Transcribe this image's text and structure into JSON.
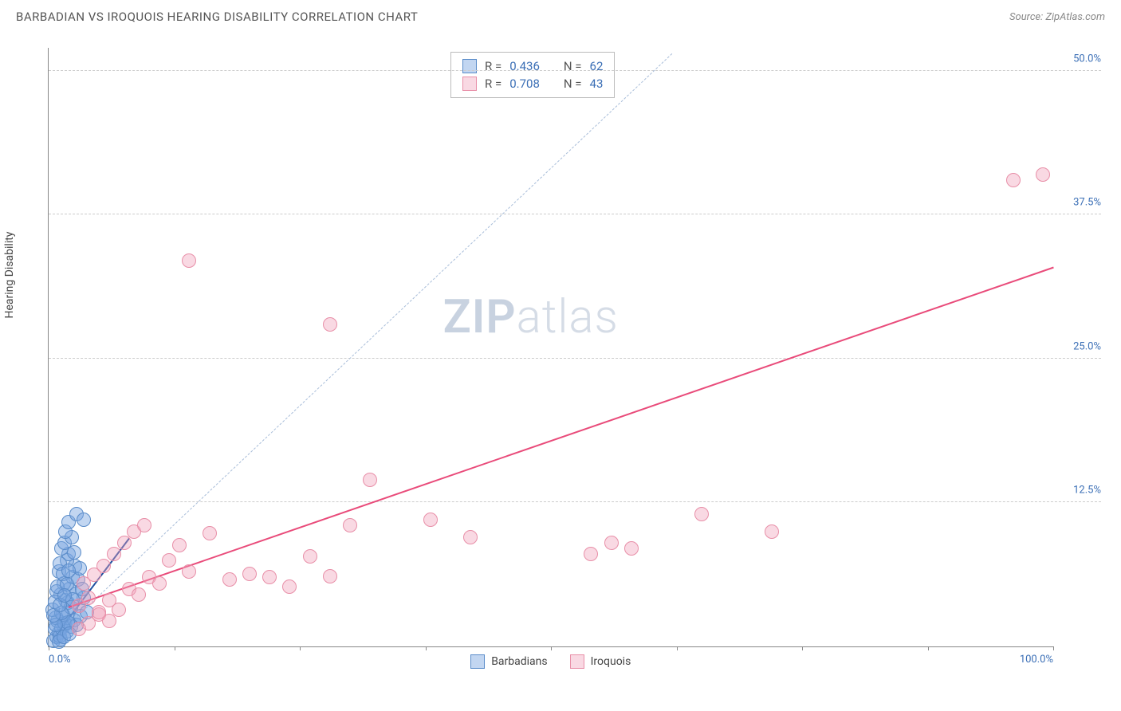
{
  "title": "BARBADIAN VS IROQUOIS HEARING DISABILITY CORRELATION CHART",
  "source_prefix": "Source: ",
  "source": "ZipAtlas.com",
  "ylabel": "Hearing Disability",
  "watermark_bold": "ZIP",
  "watermark_light": "atlas",
  "chart": {
    "type": "scatter",
    "xlim": [
      0,
      100
    ],
    "ylim": [
      0,
      52
    ],
    "ytick_values": [
      12.5,
      25.0,
      37.5,
      50.0
    ],
    "ytick_labels": [
      "12.5%",
      "25.0%",
      "37.5%",
      "50.0%"
    ],
    "xtick_values": [
      0,
      50,
      100
    ],
    "xtick_labels": [
      "0.0%",
      "",
      "100.0%"
    ],
    "xtick_minor": [
      12.5,
      25,
      37.5,
      62.5,
      75,
      87.5
    ],
    "background_color": "#ffffff",
    "grid_color": "#cccccc",
    "axis_color": "#888888",
    "tick_label_color": "#3b6fb6",
    "reference_line": {
      "x1": 2,
      "y1": 2,
      "x2": 62,
      "y2": 51.5,
      "color": "#a8bdd9",
      "dash": true
    }
  },
  "series": [
    {
      "name": "Barbadians",
      "marker_color_fill": "rgba(120,165,225,0.45)",
      "marker_color_stroke": "#5a8cc9",
      "marker_radius": 9,
      "trend_color": "#1e4fa0",
      "trend": {
        "x1": 1.5,
        "y1": 2.0,
        "x2": 8,
        "y2": 9.5
      },
      "R": "0.436",
      "N": "62",
      "points": [
        [
          0.5,
          0.5
        ],
        [
          0.8,
          0.8
        ],
        [
          1.0,
          1.2
        ],
        [
          1.2,
          0.6
        ],
        [
          1.5,
          1.8
        ],
        [
          0.6,
          1.5
        ],
        [
          0.9,
          2.2
        ],
        [
          1.1,
          0.9
        ],
        [
          1.3,
          1.6
        ],
        [
          0.7,
          2.5
        ],
        [
          1.6,
          2.0
        ],
        [
          1.8,
          1.3
        ],
        [
          2.0,
          3.0
        ],
        [
          1.4,
          2.8
        ],
        [
          2.2,
          1.7
        ],
        [
          0.4,
          3.2
        ],
        [
          1.9,
          3.8
        ],
        [
          2.5,
          2.3
        ],
        [
          1.7,
          4.0
        ],
        [
          2.8,
          1.9
        ],
        [
          1.2,
          4.5
        ],
        [
          2.1,
          5.0
        ],
        [
          3.0,
          3.5
        ],
        [
          1.5,
          5.5
        ],
        [
          2.4,
          6.0
        ],
        [
          0.8,
          4.8
        ],
        [
          3.2,
          2.6
        ],
        [
          1.0,
          6.5
        ],
        [
          2.6,
          7.0
        ],
        [
          1.8,
          7.5
        ],
        [
          3.5,
          4.2
        ],
        [
          2.0,
          8.0
        ],
        [
          1.3,
          8.5
        ],
        [
          2.9,
          5.8
        ],
        [
          1.6,
          9.0
        ],
        [
          3.8,
          3.0
        ],
        [
          2.3,
          9.5
        ],
        [
          1.1,
          7.2
        ],
        [
          3.1,
          6.8
        ],
        [
          2.7,
          4.6
        ],
        [
          0.9,
          5.2
        ],
        [
          1.4,
          6.3
        ],
        [
          2.5,
          8.2
        ],
        [
          3.3,
          5.0
        ],
        [
          1.7,
          10.0
        ],
        [
          2.0,
          10.8
        ],
        [
          2.8,
          11.5
        ],
        [
          3.5,
          11.0
        ],
        [
          2.2,
          3.4
        ],
        [
          1.9,
          2.1
        ],
        [
          0.6,
          3.9
        ],
        [
          1.0,
          0.4
        ],
        [
          1.5,
          0.8
        ],
        [
          2.1,
          1.1
        ],
        [
          0.7,
          1.9
        ],
        [
          1.3,
          2.9
        ],
        [
          1.8,
          5.4
        ],
        [
          2.4,
          4.1
        ],
        [
          0.5,
          2.7
        ],
        [
          1.1,
          3.6
        ],
        [
          1.6,
          4.4
        ],
        [
          2.0,
          6.6
        ]
      ]
    },
    {
      "name": "Iroquois",
      "marker_color_fill": "rgba(240,160,185,0.40)",
      "marker_color_stroke": "#e88fa8",
      "marker_radius": 9,
      "trend_color": "#e94b7a",
      "trend": {
        "x1": 2,
        "y1": 3.5,
        "x2": 100,
        "y2": 33
      },
      "R": "0.708",
      "N": "43",
      "points": [
        [
          3,
          3.5
        ],
        [
          4,
          4.2
        ],
        [
          5,
          2.8
        ],
        [
          3.5,
          5.5
        ],
        [
          6,
          4.0
        ],
        [
          4.5,
          6.2
        ],
        [
          7,
          3.2
        ],
        [
          5.5,
          7.0
        ],
        [
          8,
          5.0
        ],
        [
          6.5,
          8.0
        ],
        [
          9,
          4.5
        ],
        [
          7.5,
          9.0
        ],
        [
          10,
          6.0
        ],
        [
          8.5,
          10.0
        ],
        [
          11,
          5.5
        ],
        [
          9.5,
          10.5
        ],
        [
          12,
          7.5
        ],
        [
          13,
          8.8
        ],
        [
          14,
          6.5
        ],
        [
          16,
          9.8
        ],
        [
          18,
          5.8
        ],
        [
          20,
          6.3
        ],
        [
          22,
          6.0
        ],
        [
          24,
          5.2
        ],
        [
          26,
          7.8
        ],
        [
          28,
          6.1
        ],
        [
          30,
          10.5
        ],
        [
          32,
          14.5
        ],
        [
          38,
          11.0
        ],
        [
          42,
          9.5
        ],
        [
          14,
          33.5
        ],
        [
          28,
          28.0
        ],
        [
          54,
          8.0
        ],
        [
          56,
          9.0
        ],
        [
          58,
          8.5
        ],
        [
          65,
          11.5
        ],
        [
          72,
          10.0
        ],
        [
          96,
          40.5
        ],
        [
          99,
          41.0
        ],
        [
          4,
          2.0
        ],
        [
          3,
          1.5
        ],
        [
          5,
          3.0
        ],
        [
          6,
          2.2
        ]
      ]
    }
  ],
  "stats_labels": {
    "R": "R =",
    "N": "N ="
  },
  "legend": [
    {
      "label": "Barbadians",
      "fill": "rgba(120,165,225,0.45)",
      "stroke": "#5a8cc9"
    },
    {
      "label": "Iroquois",
      "fill": "rgba(240,160,185,0.40)",
      "stroke": "#e88fa8"
    }
  ]
}
